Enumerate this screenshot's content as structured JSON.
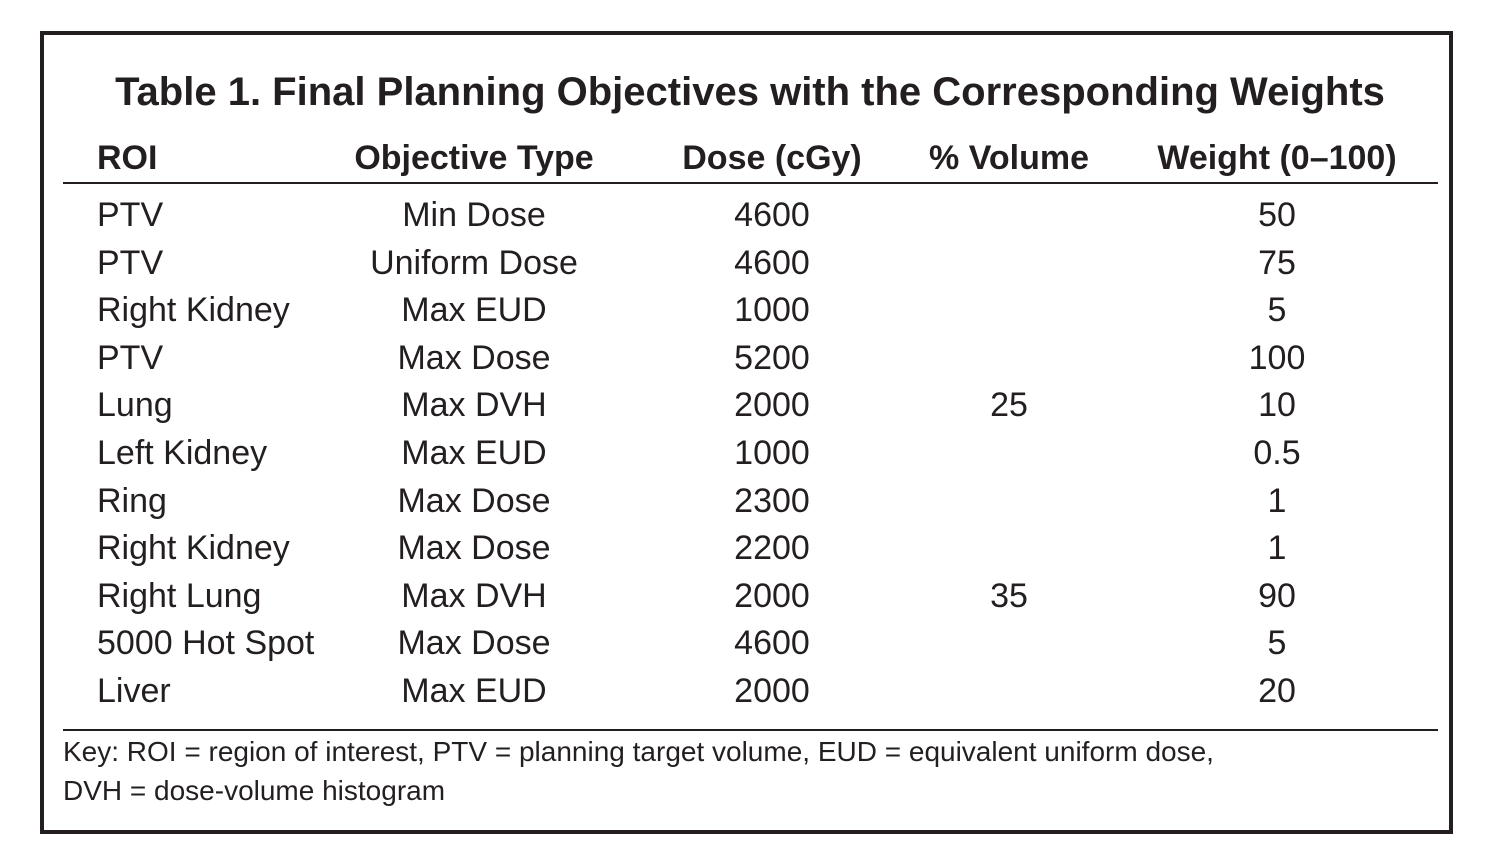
{
  "table": {
    "title": "Table 1. Final Planning Objectives with the Corresponding Weights",
    "columns": [
      "ROI",
      "Objective Type",
      "Dose (cGy)",
      "% Volume",
      "Weight (0–100)"
    ],
    "rows": [
      [
        "PTV",
        "Min Dose",
        "4600",
        "",
        "50"
      ],
      [
        "PTV",
        "Uniform Dose",
        "4600",
        "",
        "75"
      ],
      [
        "Right Kidney",
        "Max EUD",
        "1000",
        "",
        "5"
      ],
      [
        "PTV",
        "Max Dose",
        "5200",
        "",
        "100"
      ],
      [
        "Lung",
        "Max DVH",
        "2000",
        "25",
        "10"
      ],
      [
        "Left Kidney",
        "Max EUD",
        "1000",
        "",
        "0.5"
      ],
      [
        "Ring",
        "Max Dose",
        "2300",
        "",
        "1"
      ],
      [
        "Right Kidney",
        "Max Dose",
        "2200",
        "",
        "1"
      ],
      [
        "Right Lung",
        "Max DVH",
        "2000",
        "35",
        "90"
      ],
      [
        "5000 Hot Spot",
        "Max Dose",
        "4600",
        "",
        "5"
      ],
      [
        "Liver",
        "Max EUD",
        "2000",
        "",
        "20"
      ]
    ],
    "footnote": {
      "line1": "Key: ROI = region of interest, PTV = planning target volume, EUD = equivalent uniform dose,",
      "line2": "DVH = dose-volume histogram"
    }
  }
}
